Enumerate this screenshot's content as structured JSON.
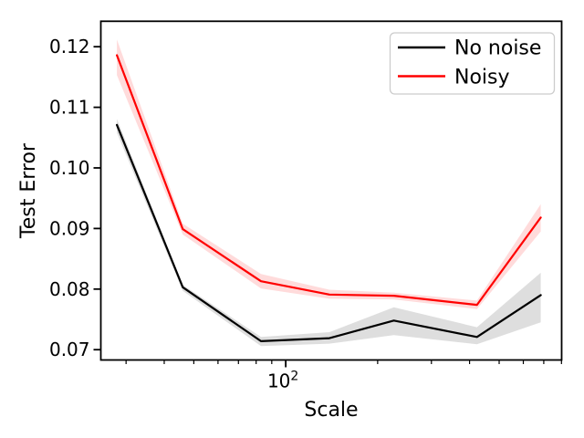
{
  "figure": {
    "background": "#ffffff",
    "spine_color": "#000000"
  },
  "chart_data": {
    "type": "line",
    "title": "",
    "xlabel": "Scale",
    "ylabel": "Test Error",
    "x_scale": "log",
    "grid": false,
    "xlim": [
      24.8,
      801
    ],
    "ylim": [
      0.0683,
      0.1242
    ],
    "x": [
      28,
      46,
      83,
      139,
      226,
      423,
      684
    ],
    "x_major_ticks": [
      {
        "value": 100,
        "label_base": "10",
        "label_exponent": "2"
      }
    ],
    "x_minor_ticks": [
      30,
      40,
      50,
      60,
      70,
      80,
      90,
      200,
      300,
      400,
      500,
      600,
      700,
      800
    ],
    "y_ticks": [
      {
        "value": 0.07,
        "label": "0.07"
      },
      {
        "value": 0.08,
        "label": "0.08"
      },
      {
        "value": 0.09,
        "label": "0.09"
      },
      {
        "value": 0.1,
        "label": "0.10"
      },
      {
        "value": 0.11,
        "label": "0.11"
      },
      {
        "value": 0.12,
        "label": "0.12"
      }
    ],
    "series": [
      {
        "name": "No noise",
        "color": "#000000",
        "band_color": "rgba(0,0,0,0.13)",
        "values": [
          0.1071,
          0.0803,
          0.0714,
          0.0719,
          0.0748,
          0.0721,
          0.079
        ],
        "lower": [
          0.1058,
          0.0797,
          0.0706,
          0.071,
          0.0724,
          0.0709,
          0.0745
        ],
        "upper": [
          0.1081,
          0.0807,
          0.0721,
          0.0729,
          0.077,
          0.0737,
          0.0827
        ]
      },
      {
        "name": "Noisy",
        "color": "#ff0000",
        "band_color": "rgba(255,0,0,0.14)",
        "values": [
          0.1186,
          0.0899,
          0.0813,
          0.0791,
          0.0789,
          0.0774,
          0.0918
        ],
        "lower": [
          0.1153,
          0.089,
          0.0801,
          0.0784,
          0.0783,
          0.0767,
          0.0895
        ],
        "upper": [
          0.1212,
          0.0908,
          0.0825,
          0.0799,
          0.0794,
          0.0781,
          0.094
        ]
      }
    ],
    "legend": {
      "position": "upper right",
      "entries": [
        "No noise",
        "Noisy"
      ],
      "border_color": "#cccccc",
      "background": "rgba(255,255,255,0.9)"
    }
  }
}
